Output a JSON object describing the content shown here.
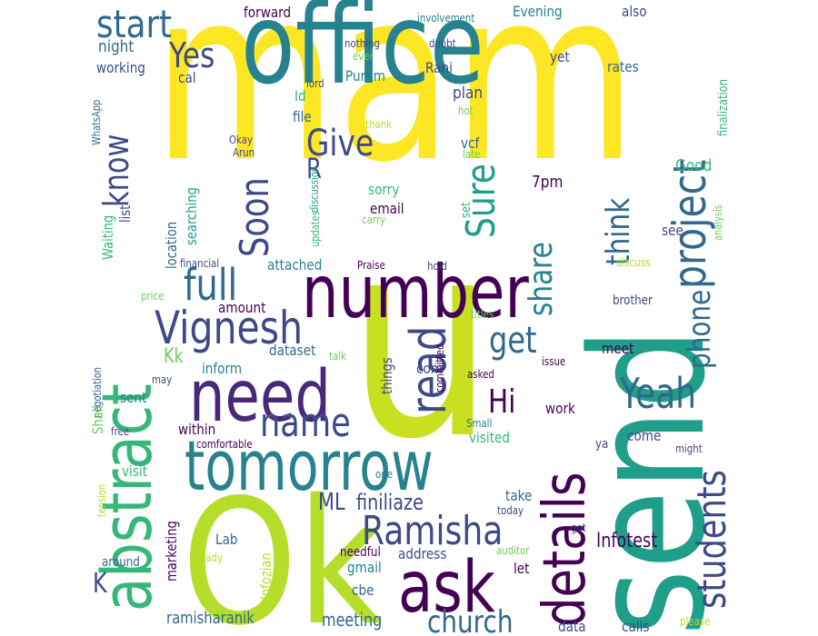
{
  "colors": {
    "background": "#ffffff",
    "palette": [
      "#440154",
      "#482878",
      "#3e4989",
      "#31688e",
      "#26828e",
      "#1f9e89",
      "#35b779",
      "#6ece58",
      "#b5de2b",
      "#fde725"
    ]
  },
  "words": [
    {
      "text": "mam",
      "color": "#fde725"
    },
    {
      "text": "office",
      "color": "#26828e"
    },
    {
      "text": "u",
      "color": "#c8e020"
    },
    {
      "text": "Ok",
      "color": "#b5de2b"
    },
    {
      "text": "send",
      "color": "#1f9e89"
    },
    {
      "text": "number",
      "color": "#440154"
    },
    {
      "text": "need",
      "color": "#482878"
    },
    {
      "text": "tomorrow",
      "color": "#26828e"
    },
    {
      "text": "abstract",
      "color": "#35b779"
    },
    {
      "text": "details",
      "color": "#440154"
    },
    {
      "text": "ask",
      "color": "#440154"
    },
    {
      "text": "project",
      "color": "#31688e"
    },
    {
      "text": "Vignesh",
      "color": "#3e4989"
    },
    {
      "text": "Ramisha",
      "color": "#3e4989"
    },
    {
      "text": "name",
      "color": "#3e4989"
    },
    {
      "text": "full",
      "color": "#31688e"
    },
    {
      "text": "read",
      "color": "#3e4989"
    },
    {
      "text": "Yeah",
      "color": "#31688e"
    },
    {
      "text": "students",
      "color": "#3e4989"
    },
    {
      "text": "church",
      "color": "#31688e"
    },
    {
      "text": "start",
      "color": "#31688e"
    },
    {
      "text": "Yes",
      "color": "#3e4989"
    },
    {
      "text": "Give",
      "color": "#3e4989"
    },
    {
      "text": "Soon",
      "color": "#3e4989"
    },
    {
      "text": "get",
      "color": "#31688e"
    },
    {
      "text": "Sure",
      "color": "#1f9e89"
    },
    {
      "text": "share",
      "color": "#26828e"
    },
    {
      "text": "think",
      "color": "#31688e"
    },
    {
      "text": "phone",
      "color": "#31688e"
    },
    {
      "text": "know",
      "color": "#3e4989"
    },
    {
      "text": "Hi",
      "color": "#440154"
    },
    {
      "text": "R",
      "color": "#3e4989"
    },
    {
      "text": "ML",
      "color": "#3e4989"
    },
    {
      "text": "finiliaze",
      "color": "#3e4989"
    },
    {
      "text": "meeting",
      "color": "#31688e"
    },
    {
      "text": "Kk",
      "color": "#6ece58"
    },
    {
      "text": "K",
      "color": "#3e4989"
    },
    {
      "text": "Infotest",
      "color": "#440154"
    },
    {
      "text": "ramisharanik",
      "color": "#31688e"
    },
    {
      "text": "forward",
      "color": "#440154"
    },
    {
      "text": "night",
      "color": "#31688e"
    },
    {
      "text": "working",
      "color": "#3e4989"
    },
    {
      "text": "cal",
      "color": "#3e4989"
    },
    {
      "text": "Purum",
      "color": "#26828e"
    },
    {
      "text": "Rani",
      "color": "#3e4989"
    },
    {
      "text": "Evening",
      "color": "#26828e"
    },
    {
      "text": "also",
      "color": "#3e4989"
    },
    {
      "text": "yet",
      "color": "#3e4989"
    },
    {
      "text": "rates",
      "color": "#31688e"
    },
    {
      "text": "finalization",
      "color": "#35b779"
    },
    {
      "text": "involvement",
      "color": "#26828e"
    },
    {
      "text": "nothing",
      "color": "#3e4989"
    },
    {
      "text": "ever",
      "color": "#6ece58"
    },
    {
      "text": "doubt",
      "color": "#3e4989"
    },
    {
      "text": "lord",
      "color": "#3e4989"
    },
    {
      "text": "Id",
      "color": "#35b779"
    },
    {
      "text": "plan",
      "color": "#3e4989"
    },
    {
      "text": "file",
      "color": "#31688e"
    },
    {
      "text": "hot",
      "color": "#6ece58"
    },
    {
      "text": "thank",
      "color": "#b5de2b"
    },
    {
      "text": "vcf",
      "color": "#31688e"
    },
    {
      "text": "WhatsApp",
      "color": "#31688e"
    },
    {
      "text": "Okay",
      "color": "#3e4989"
    },
    {
      "text": "Arun",
      "color": "#3e4989"
    },
    {
      "text": "late",
      "color": "#6ece58"
    },
    {
      "text": "discussion",
      "color": "#1f9e89"
    },
    {
      "text": "7pm",
      "color": "#440154"
    },
    {
      "text": "Good",
      "color": "#35b779"
    },
    {
      "text": "list",
      "color": "#3e4989"
    },
    {
      "text": "searching",
      "color": "#1f9e89"
    },
    {
      "text": "location",
      "color": "#31688e"
    },
    {
      "text": "sorry",
      "color": "#35b779"
    },
    {
      "text": "email",
      "color": "#440154"
    },
    {
      "text": "set",
      "color": "#35b779"
    },
    {
      "text": "carry",
      "color": "#6ece58"
    },
    {
      "text": "updates",
      "color": "#35b779"
    },
    {
      "text": "Waiting",
      "color": "#35b779"
    },
    {
      "text": "see",
      "color": "#3e4989"
    },
    {
      "text": "analysis",
      "color": "#6ece58"
    },
    {
      "text": "financial",
      "color": "#3e4989"
    },
    {
      "text": "Praise",
      "color": "#440154"
    },
    {
      "text": "hold",
      "color": "#3e4989"
    },
    {
      "text": "discuss",
      "color": "#b5de2b"
    },
    {
      "text": "attached",
      "color": "#26828e"
    },
    {
      "text": "price",
      "color": "#6ece58"
    },
    {
      "text": "amount",
      "color": "#440154"
    },
    {
      "text": "titles",
      "color": "#6ece58"
    },
    {
      "text": "brother",
      "color": "#3e4989"
    },
    {
      "text": "dataset",
      "color": "#31688e"
    },
    {
      "text": "talk",
      "color": "#6ece58"
    },
    {
      "text": "inform",
      "color": "#26828e"
    },
    {
      "text": "things",
      "color": "#3e4989"
    },
    {
      "text": "com",
      "color": "#3e4989"
    },
    {
      "text": "meet",
      "color": "#440154"
    },
    {
      "text": "negotiation",
      "color": "#31688e"
    },
    {
      "text": "committed",
      "color": "#440154"
    },
    {
      "text": "issue",
      "color": "#440154"
    },
    {
      "text": "asked",
      "color": "#440154"
    },
    {
      "text": "may",
      "color": "#3e4989"
    },
    {
      "text": "Shall",
      "color": "#6ece58"
    },
    {
      "text": "sent",
      "color": "#26828e"
    },
    {
      "text": "within",
      "color": "#440154"
    },
    {
      "text": "work",
      "color": "#440154"
    },
    {
      "text": "free",
      "color": "#3e4989"
    },
    {
      "text": "Small",
      "color": "#26828e"
    },
    {
      "text": "visited",
      "color": "#35b779"
    },
    {
      "text": "come",
      "color": "#3e4989"
    },
    {
      "text": "ya",
      "color": "#3e4989"
    },
    {
      "text": "might",
      "color": "#3e4989"
    },
    {
      "text": "comfortable",
      "color": "#440154"
    },
    {
      "text": "visit",
      "color": "#35b779"
    },
    {
      "text": "tension",
      "color": "#b5de2b"
    },
    {
      "text": "one",
      "color": "#26828e"
    },
    {
      "text": "take",
      "color": "#31688e"
    },
    {
      "text": "today",
      "color": "#3e4989"
    },
    {
      "text": "Lab",
      "color": "#31688e"
    },
    {
      "text": "marketing",
      "color": "#440154"
    },
    {
      "text": "Infozian",
      "color": "#b5de2b"
    },
    {
      "text": "got",
      "color": "#3e4989"
    },
    {
      "text": "around",
      "color": "#31688e"
    },
    {
      "text": "ready",
      "color": "#b5de2b"
    },
    {
      "text": "needful",
      "color": "#440154"
    },
    {
      "text": "auditor",
      "color": "#6ece58"
    },
    {
      "text": "address",
      "color": "#3e4989"
    },
    {
      "text": "gmail",
      "color": "#26828e"
    },
    {
      "text": "let",
      "color": "#440154"
    },
    {
      "text": "cbe",
      "color": "#31688e"
    },
    {
      "text": "data",
      "color": "#3e4989"
    },
    {
      "text": "calls",
      "color": "#3e4989"
    },
    {
      "text": "please",
      "color": "#b5de2b"
    }
  ]
}
